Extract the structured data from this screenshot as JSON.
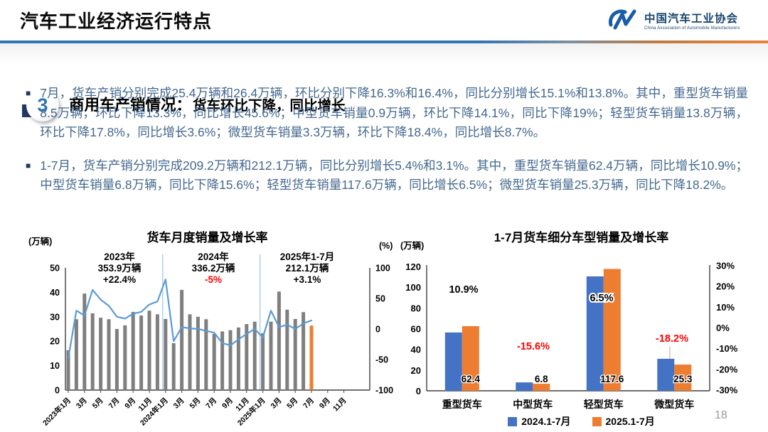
{
  "header": {
    "title": "汽车工业经济运行特点",
    "logo": {
      "org_cn": "中国汽车工业协会",
      "org_en": "China Association of Automobile Manufacturers"
    }
  },
  "section": {
    "number": "3",
    "title": "商用车产销情况：",
    "subtitle": "货车环比下降，同比增长"
  },
  "bullets": [
    "7月，货车产销分别完成25.4万辆和26.4万辆，环比分别下降16.3%和16.4%，同比分别增长15.1%和13.8%。其中，重型货车销量8.5万辆，环比下降13.3%，同比增长45.6%；中型货车销量0.9万辆，环比下降14.1%，同比下降19%；轻型货车销量13.8万辆，环比下降17.8%，同比增长3.6%；微型货车销量3.3万辆，环比下降18.4%，同比增长8.7%。",
    "1-7月，货车产销分别完成209.2万辆和212.1万辆，同比分别增长5.4%和3.1%。其中，重型货车销量62.4万辆，同比增长10.9%；中型货车销量6.8万辆，同比下降15.6%；轻型货车销量117.6万辆，同比增长6.5%；微型货车销量25.3万辆，同比下降18.2%。"
  ],
  "page_number": "18",
  "colors": {
    "bar_gray": "#7F7F7F",
    "bar_orange": "#ED7D31",
    "bar_blue": "#4472C4",
    "line_blue": "#5B9BD5",
    "accent_red": "#FF0000",
    "axis": "#404040",
    "separator_blue": "#9DC3E6"
  },
  "chart_data": [
    {
      "type": "bar+line",
      "title": "货车月度销量及增长率",
      "unit_left": "(万辆)",
      "unit_right": "(%)",
      "ylim_left": [
        0,
        50
      ],
      "yticks_left": [
        50,
        40,
        30,
        20,
        10,
        0
      ],
      "ylim_right": [
        -100,
        100
      ],
      "yticks_right": [
        100,
        50,
        0,
        -50,
        -100
      ],
      "x_tick_labels": [
        "2023年1月",
        "3月",
        "5月",
        "7月",
        "9月",
        "11月",
        "2024年1月",
        "3月",
        "5月",
        "7月",
        "9月",
        "11月",
        "2025年1月",
        "3月",
        "5月",
        "7月",
        "9月",
        "11月"
      ],
      "x_axis_months_total": 36,
      "year_separator_month_indices": [
        12,
        24
      ],
      "bars": {
        "name": "月度销量(万辆)",
        "values": [
          16.3,
          29.0,
          39.5,
          31.4,
          29.6,
          29.0,
          25.0,
          26.5,
          32.0,
          30.5,
          32.5,
          31.0,
          29.1,
          19.2,
          41.0,
          31.0,
          30.0,
          29.0,
          23.0,
          24.0,
          24.5,
          25.6,
          27.0,
          28.0,
          23.3,
          28.0,
          40.3,
          32.9,
          29.1,
          31.9,
          26.4
        ],
        "highlight_last_index": 30
      },
      "line": {
        "name": "增长率(%)",
        "values": [
          -48,
          30,
          22,
          64,
          48,
          38,
          20,
          17,
          25,
          28,
          40,
          45,
          81,
          -20,
          3,
          1,
          0,
          -3,
          -6,
          -23,
          -27,
          -17,
          -8,
          0,
          -14,
          30,
          3,
          7,
          0,
          9,
          14
        ]
      },
      "annotations": [
        {
          "lines": [
            "2023年",
            "353.9万辆",
            "+22.4%"
          ],
          "line_colors": [
            "#000000",
            "#000000",
            "#000000"
          ]
        },
        {
          "lines": [
            "2024年",
            "336.2万辆",
            "-5%"
          ],
          "line_colors": [
            "#000000",
            "#000000",
            "#FF0000"
          ]
        },
        {
          "lines": [
            "2025年1-7月",
            "212.1万辆",
            "+3.1%"
          ],
          "line_colors": [
            "#000000",
            "#000000",
            "#000000"
          ]
        }
      ]
    },
    {
      "type": "bar",
      "title": "1-7月货车细分车型销量及增长率",
      "unit_left": "(万辆)",
      "categories": [
        "重型货车",
        "中型货车",
        "轻型货车",
        "微型货车"
      ],
      "series": [
        {
          "name": "2024.1-7月",
          "color": "#4472C4",
          "values": [
            56.3,
            8.1,
            110.4,
            30.9
          ]
        },
        {
          "name": "2025.1-7月",
          "color": "#ED7D31",
          "values": [
            62.4,
            6.8,
            117.6,
            25.3
          ]
        }
      ],
      "bar_value_labels": [
        "62.4",
        "6.8",
        "117.6",
        "25.3"
      ],
      "growth_labels": [
        {
          "text": "10.9%",
          "color": "#000000"
        },
        {
          "text": "-15.6%",
          "color": "#FF0000"
        },
        {
          "text": "6.5%",
          "color": "#000000"
        },
        {
          "text": "-18.2%",
          "color": "#FF0000"
        }
      ],
      "ylim_left": [
        0,
        120
      ],
      "yticks_left": [
        120,
        100,
        80,
        60,
        40,
        20,
        0
      ],
      "ylim_right_pct": [
        -30,
        30
      ],
      "yticks_right_pct": [
        30,
        20,
        10,
        0,
        -10,
        -20,
        -30
      ],
      "legend": [
        "2024.1-7月",
        "2025.1-7月"
      ]
    }
  ]
}
